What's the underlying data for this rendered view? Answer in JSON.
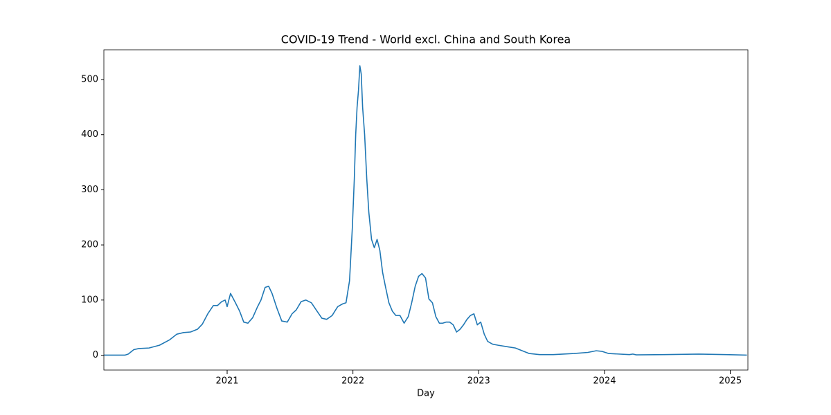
{
  "chart_data": {
    "type": "line",
    "title": "COVID-19 Trend - World excl. China and South Korea",
    "x_label": "Day",
    "x": [
      2020.022,
      2020.187,
      2020.214,
      2020.258,
      2020.297,
      2020.379,
      2020.462,
      2020.544,
      2020.599,
      2020.654,
      2020.709,
      2020.764,
      2020.802,
      2020.846,
      2020.89,
      2020.923,
      2020.956,
      2020.984,
      2021.0,
      2021.027,
      2021.066,
      2021.099,
      2021.132,
      2021.165,
      2021.203,
      2021.242,
      2021.269,
      2021.302,
      2021.33,
      2021.357,
      2021.396,
      2021.434,
      2021.478,
      2021.516,
      2021.549,
      2021.588,
      2021.626,
      2021.67,
      2021.714,
      2021.753,
      2021.791,
      2021.835,
      2021.879,
      2021.918,
      2021.945,
      2021.973,
      2021.995,
      2022.011,
      2022.022,
      2022.033,
      2022.044,
      2022.055,
      2022.066,
      2022.077,
      2022.093,
      2022.11,
      2022.126,
      2022.148,
      2022.17,
      2022.192,
      2022.214,
      2022.236,
      2022.258,
      2022.286,
      2022.313,
      2022.341,
      2022.374,
      2022.407,
      2022.44,
      2022.467,
      2022.495,
      2022.522,
      2022.549,
      2022.577,
      2022.604,
      2022.632,
      2022.659,
      2022.687,
      2022.714,
      2022.742,
      2022.769,
      2022.797,
      2022.824,
      2022.852,
      2022.879,
      2022.907,
      2022.934,
      2022.962,
      2022.989,
      2023.016,
      2023.044,
      2023.071,
      2023.11,
      2023.154,
      2023.236,
      2023.291,
      2023.346,
      2023.401,
      2023.484,
      2023.593,
      2023.758,
      2023.813,
      2023.868,
      2023.934,
      2023.978,
      2024.033,
      2024.198,
      2024.225,
      2024.253,
      2024.473,
      2024.747,
      2024.967,
      2025.132
    ],
    "series": [
      {
        "name": "World excl. China and South Korea",
        "color": "#1f77b4",
        "values": [
          0,
          0,
          2,
          10,
          12,
          13,
          18,
          28,
          38,
          41,
          42,
          47,
          56,
          75,
          90,
          90,
          97,
          100,
          88,
          112,
          95,
          80,
          60,
          58,
          68,
          88,
          100,
          123,
          125,
          112,
          85,
          62,
          60,
          75,
          82,
          97,
          100,
          95,
          80,
          67,
          65,
          72,
          88,
          93,
          95,
          135,
          230,
          320,
          400,
          450,
          480,
          525,
          510,
          450,
          400,
          320,
          260,
          210,
          195,
          210,
          190,
          150,
          125,
          95,
          80,
          72,
          72,
          58,
          70,
          95,
          125,
          143,
          148,
          140,
          102,
          95,
          70,
          58,
          58,
          60,
          60,
          55,
          42,
          47,
          55,
          65,
          72,
          75,
          55,
          60,
          38,
          25,
          20,
          18,
          15,
          13,
          8,
          3,
          1,
          1,
          3,
          4,
          5,
          8,
          7,
          3,
          1,
          2,
          0.5,
          1,
          2,
          1,
          0
        ]
      }
    ],
    "xlim": [
      2020.02,
      2025.14
    ],
    "xticks": [
      2021,
      2022,
      2023,
      2024,
      2025
    ],
    "ylim": [
      -27,
      554
    ],
    "yticks": [
      0,
      100,
      200,
      300,
      400,
      500
    ],
    "grid": false
  }
}
